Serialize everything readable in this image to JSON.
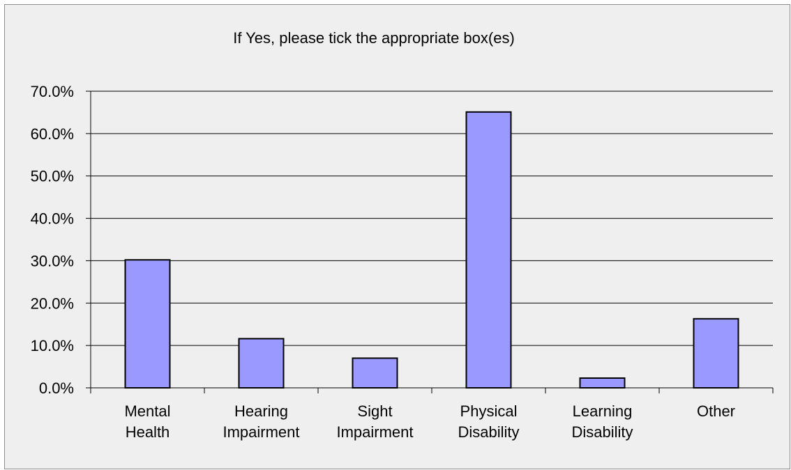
{
  "chart_data": {
    "type": "bar",
    "title": "If Yes, please tick the appropriate box(es)",
    "categories": [
      [
        "Mental",
        "Health"
      ],
      [
        "Hearing",
        "Impairment"
      ],
      [
        "Sight",
        "Impairment"
      ],
      [
        "Physical",
        "Disability"
      ],
      [
        "Learning",
        "Disability"
      ],
      [
        "Other"
      ]
    ],
    "values": [
      30.2,
      11.6,
      7.0,
      65.1,
      2.3,
      16.3
    ],
    "ylim": [
      0,
      70
    ],
    "yticks": [
      "0.0%",
      "10.0%",
      "20.0%",
      "30.0%",
      "40.0%",
      "50.0%",
      "60.0%",
      "70.0%"
    ],
    "ytick_values": [
      0,
      10,
      20,
      30,
      40,
      50,
      60,
      70
    ],
    "grid": true,
    "legend": "none",
    "bar_color": "#9999ff",
    "bar_stroke": "#000000",
    "background": "#efefef"
  }
}
